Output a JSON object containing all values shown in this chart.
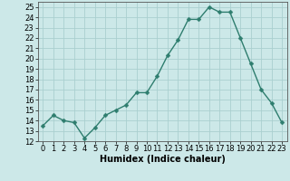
{
  "x": [
    0,
    1,
    2,
    3,
    4,
    5,
    6,
    7,
    8,
    9,
    10,
    11,
    12,
    13,
    14,
    15,
    16,
    17,
    18,
    19,
    20,
    21,
    22,
    23
  ],
  "y": [
    13.5,
    14.5,
    14.0,
    13.8,
    12.3,
    13.3,
    14.5,
    15.0,
    15.5,
    16.7,
    16.7,
    18.3,
    20.3,
    21.8,
    23.8,
    23.8,
    25.0,
    24.5,
    24.5,
    22.0,
    19.5,
    17.0,
    15.7,
    13.8
  ],
  "line_color": "#2e7d6e",
  "marker": "D",
  "marker_size": 2.5,
  "line_width": 1.0,
  "bg_color": "#cce8e8",
  "grid_color_major": "#aacfcf",
  "grid_color_minor": "#c4a8a8",
  "xlabel": "Humidex (Indice chaleur)",
  "ylim": [
    12,
    25.5
  ],
  "xlim": [
    -0.5,
    23.5
  ],
  "yticks": [
    12,
    13,
    14,
    15,
    16,
    17,
    18,
    19,
    20,
    21,
    22,
    23,
    24,
    25
  ],
  "xticks": [
    0,
    1,
    2,
    3,
    4,
    5,
    6,
    7,
    8,
    9,
    10,
    11,
    12,
    13,
    14,
    15,
    16,
    17,
    18,
    19,
    20,
    21,
    22,
    23
  ],
  "font_size_label": 7,
  "font_size_tick": 6
}
